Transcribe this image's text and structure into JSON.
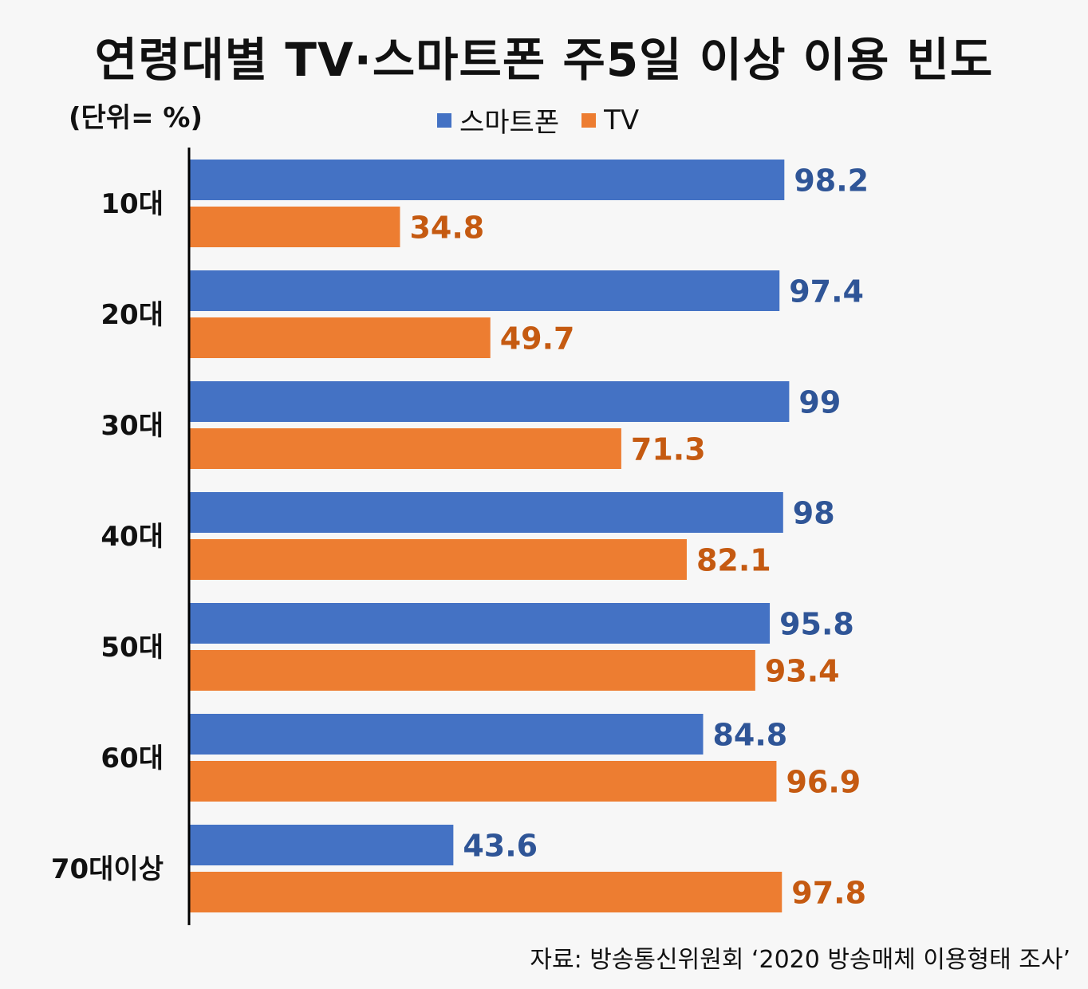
{
  "title": "연령대별 TV·스마트폰 주5일 이상 이용 빈도",
  "unit": "(단위= %)",
  "source": "자료: 방송통신위원회 ‘2020 방송매체 이용형태 조사’",
  "colors": {
    "smartphone": "#4472c4",
    "tv": "#ed7d31",
    "smartphone_label": "#2f5597",
    "tv_label": "#c55a11"
  },
  "chart_data": {
    "type": "bar",
    "orientation": "horizontal",
    "categories": [
      "10대",
      "20대",
      "30대",
      "40대",
      "50대",
      "60대",
      "70대이상"
    ],
    "series": [
      {
        "name": "스마트폰",
        "values": [
          98.2,
          97.4,
          99,
          98,
          95.8,
          84.8,
          43.6
        ]
      },
      {
        "name": "TV",
        "values": [
          34.8,
          49.7,
          71.3,
          82.1,
          93.4,
          96.9,
          97.8
        ]
      }
    ],
    "value_labels": {
      "스마트폰": [
        "98.2",
        "97.4",
        "99",
        "98",
        "95.8",
        "84.8",
        "43.6"
      ],
      "TV": [
        "34.8",
        "49.7",
        "71.3",
        "82.1",
        "93.4",
        "96.9",
        "97.8"
      ]
    },
    "xlim": [
      0,
      100
    ],
    "grid": false,
    "legend_position": "top-center"
  }
}
